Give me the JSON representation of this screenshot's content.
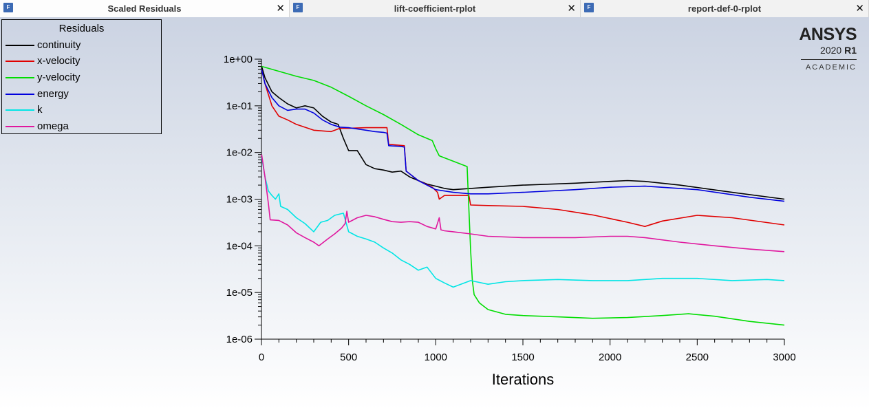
{
  "tabs": [
    {
      "title": "Scaled Residuals",
      "icon": "fluent-window-icon",
      "close": "✕"
    },
    {
      "title": "lift-coefficient-rplot",
      "icon": "fluent-window-icon",
      "close": "✕"
    },
    {
      "title": "report-def-0-rplot",
      "icon": "fluent-window-icon",
      "close": "✕"
    }
  ],
  "logo": {
    "brand": "ANSYS",
    "year": "2020",
    "release": "R1",
    "edition": "ACADEMIC"
  },
  "chart_data": {
    "type": "line",
    "title": "",
    "xlabel": "Iterations",
    "ylabel": "",
    "yscale": "log",
    "xlim": [
      0,
      3000
    ],
    "ylim": [
      1e-06,
      1
    ],
    "xticks": [
      0,
      500,
      1000,
      1500,
      2000,
      2500,
      3000
    ],
    "xtick_labels": [
      "0",
      "500",
      "1000",
      "1500",
      "2000",
      "2500",
      "3000"
    ],
    "yticks": [
      1e-06,
      1e-05,
      0.0001,
      0.001,
      0.01,
      0.1,
      1
    ],
    "ytick_labels": [
      "1e-06",
      "1e-05",
      "1e-04",
      "1e-03",
      "1e-02",
      "1e-01",
      "1e+00"
    ],
    "grid": false,
    "legend_title": "Residuals",
    "legend_position": "top-left",
    "series": [
      {
        "name": "continuity",
        "color": "#000000",
        "x": [
          1,
          20,
          60,
          100,
          150,
          200,
          250,
          300,
          350,
          400,
          440,
          470,
          500,
          550,
          600,
          650,
          700,
          750,
          800,
          850,
          900,
          950,
          1000,
          1050,
          1100,
          1200,
          1300,
          1500,
          1800,
          2000,
          2100,
          2200,
          2400,
          2700,
          3000
        ],
        "y": [
          0.7,
          0.4,
          0.2,
          0.15,
          0.11,
          0.09,
          0.1,
          0.09,
          0.06,
          0.045,
          0.04,
          0.02,
          0.011,
          0.011,
          0.0055,
          0.0045,
          0.0042,
          0.0038,
          0.004,
          0.003,
          0.0025,
          0.0021,
          0.0019,
          0.0017,
          0.0016,
          0.0017,
          0.0018,
          0.002,
          0.0022,
          0.0024,
          0.0025,
          0.0024,
          0.002,
          0.0014,
          0.001
        ]
      },
      {
        "name": "x-velocity",
        "color": "#e00000",
        "x": [
          1,
          20,
          60,
          100,
          150,
          200,
          300,
          400,
          450,
          500,
          600,
          720,
          730,
          820,
          830,
          900,
          980,
          1010,
          1020,
          1050,
          1100,
          1190,
          1200,
          1300,
          1500,
          1700,
          1900,
          2100,
          2200,
          2300,
          2500,
          2700,
          3000
        ],
        "y": [
          0.6,
          0.3,
          0.1,
          0.06,
          0.05,
          0.04,
          0.03,
          0.028,
          0.033,
          0.033,
          0.034,
          0.034,
          0.015,
          0.014,
          0.004,
          0.0025,
          0.0018,
          0.0014,
          0.001,
          0.0012,
          0.0012,
          0.0012,
          0.00075,
          0.00073,
          0.0007,
          0.0006,
          0.00046,
          0.00032,
          0.00026,
          0.00034,
          0.00045,
          0.0004,
          0.00028
        ]
      },
      {
        "name": "y-velocity",
        "color": "#00dd00",
        "x": [
          1,
          100,
          200,
          300,
          400,
          500,
          600,
          700,
          800,
          900,
          980,
          1000,
          1020,
          1180,
          1190,
          1200,
          1210,
          1220,
          1250,
          1300,
          1400,
          1500,
          1700,
          1900,
          2100,
          2300,
          2450,
          2600,
          2800,
          3000
        ],
        "y": [
          0.7,
          0.55,
          0.43,
          0.35,
          0.25,
          0.16,
          0.1,
          0.065,
          0.04,
          0.024,
          0.018,
          0.012,
          0.0085,
          0.005,
          0.0006,
          8e-05,
          1.8e-05,
          9e-06,
          6e-06,
          4.3e-06,
          3.4e-06,
          3.2e-06,
          3e-06,
          2.8e-06,
          2.9e-06,
          3.2e-06,
          3.5e-06,
          3.1e-06,
          2.4e-06,
          2e-06
        ]
      },
      {
        "name": "energy",
        "color": "#0000dd",
        "x": [
          1,
          20,
          60,
          100,
          150,
          200,
          250,
          300,
          350,
          400,
          450,
          500,
          550,
          600,
          650,
          700,
          720,
          730,
          800,
          820,
          830,
          900,
          1000,
          1100,
          1200,
          1300,
          1500,
          1800,
          2000,
          2200,
          2500,
          2800,
          3000
        ],
        "y": [
          0.6,
          0.3,
          0.15,
          0.1,
          0.08,
          0.085,
          0.085,
          0.07,
          0.05,
          0.04,
          0.035,
          0.034,
          0.032,
          0.03,
          0.028,
          0.027,
          0.026,
          0.014,
          0.0135,
          0.013,
          0.004,
          0.0025,
          0.0016,
          0.0014,
          0.0013,
          0.0013,
          0.0014,
          0.0016,
          0.0018,
          0.0019,
          0.0016,
          0.0011,
          0.0009
        ]
      },
      {
        "name": "k",
        "color": "#00e5e5",
        "x": [
          1,
          20,
          40,
          60,
          80,
          100,
          110,
          150,
          200,
          250,
          300,
          340,
          380,
          420,
          470,
          500,
          550,
          600,
          650,
          700,
          750,
          800,
          850,
          900,
          950,
          1000,
          1050,
          1100,
          1200,
          1300,
          1400,
          1500,
          1700,
          1900,
          2100,
          2300,
          2500,
          2700,
          2900,
          3000
        ],
        "y": [
          0.008,
          0.003,
          0.0015,
          0.0012,
          0.001,
          0.0013,
          0.0007,
          0.0006,
          0.0004,
          0.0003,
          0.0002,
          0.00032,
          0.00035,
          0.00045,
          0.0005,
          0.0002,
          0.00016,
          0.00014,
          0.00012,
          9e-05,
          7e-05,
          5e-05,
          4e-05,
          3e-05,
          3.5e-05,
          2e-05,
          1.6e-05,
          1.3e-05,
          1.8e-05,
          1.5e-05,
          1.7e-05,
          1.8e-05,
          1.9e-05,
          1.8e-05,
          1.8e-05,
          2e-05,
          2e-05,
          1.8e-05,
          1.9e-05,
          1.8e-05
        ]
      },
      {
        "name": "omega",
        "color": "#e0179e",
        "x": [
          1,
          20,
          40,
          50,
          100,
          150,
          200,
          250,
          300,
          330,
          380,
          420,
          460,
          480,
          490,
          500,
          550,
          600,
          650,
          700,
          750,
          800,
          850,
          900,
          950,
          1000,
          1020,
          1030,
          1050,
          1100,
          1200,
          1300,
          1500,
          1800,
          2000,
          2100,
          2200,
          2400,
          2600,
          2800,
          3000
        ],
        "y": [
          0.009,
          0.003,
          0.0008,
          0.00036,
          0.00035,
          0.00028,
          0.00019,
          0.00015,
          0.00012,
          0.0001,
          0.00014,
          0.00018,
          0.00024,
          0.0003,
          0.00055,
          0.00032,
          0.0004,
          0.00045,
          0.00042,
          0.00037,
          0.00033,
          0.00032,
          0.00033,
          0.00032,
          0.00026,
          0.00023,
          0.0004,
          0.00022,
          0.00021,
          0.0002,
          0.00018,
          0.00016,
          0.00015,
          0.00015,
          0.00016,
          0.00016,
          0.00015,
          0.00012,
          0.0001,
          8.5e-05,
          7.5e-05
        ]
      }
    ]
  }
}
